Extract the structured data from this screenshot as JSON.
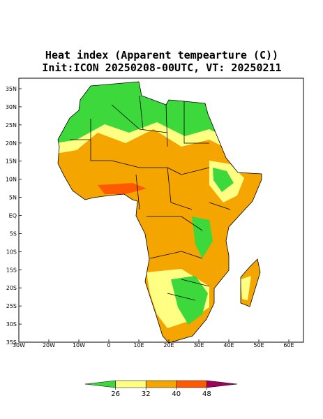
{
  "title": "Heat index (Apparent tempearture (C))",
  "subtitle": "Init:ICON 20250208-00UTC, VT: 20250211",
  "map": {
    "lon_labels": [
      "30W",
      "20W",
      "10W",
      "0",
      "10E",
      "20E",
      "30E",
      "40E",
      "50E",
      "60E"
    ],
    "lat_labels": [
      "35N",
      "30N",
      "25N",
      "20N",
      "15N",
      "10N",
      "5N",
      "EQ",
      "5S",
      "10S",
      "15S",
      "20S",
      "25S",
      "30S",
      "35S"
    ]
  },
  "colorbar": {
    "levels": [
      26,
      32,
      40,
      48
    ],
    "colors": [
      "#3cd83c",
      "#ffff84",
      "#f5a500",
      "#ff5a00",
      "#a0005a"
    ]
  }
}
